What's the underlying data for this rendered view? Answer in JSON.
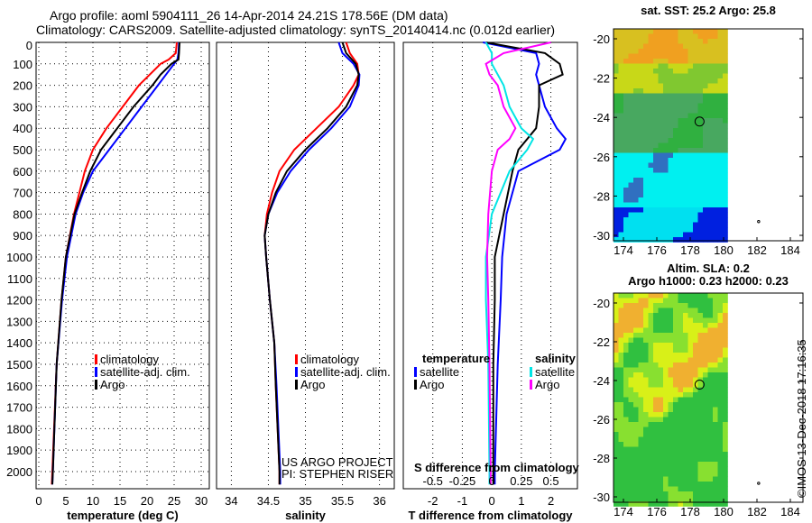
{
  "header": {
    "line1": "Argo profile: aoml 5904111_26 14-Apr-2014 24.21S 178.56E (DM data)",
    "line2": "Climatology: CARS2009. Satellite-adjusted climatology: synTS_20140414.nc (0.012d earlier)"
  },
  "colors": {
    "climatology": "#ff0000",
    "satellite": "#0000ff",
    "argo": "#000000",
    "sal_satellite": "#00e5e5",
    "sal_argo": "#ff00ff"
  },
  "chart_data": [
    {
      "type": "line",
      "name": "temperature",
      "xlabel": "temperature (deg C)",
      "ylabel": "depth",
      "xlim": [
        -0.5,
        31.5
      ],
      "ylim": [
        2080,
        0
      ],
      "xticks": [
        0,
        5,
        10,
        15,
        20,
        25,
        30
      ],
      "yticks": [
        0,
        100,
        200,
        300,
        400,
        500,
        600,
        700,
        800,
        900,
        1000,
        1100,
        1200,
        1300,
        1400,
        1500,
        1600,
        1700,
        1800,
        1900,
        2000
      ],
      "legend": [
        "climatology",
        "satellite-adj. clim.",
        "Argo"
      ],
      "depth": [
        0,
        50,
        80,
        100,
        150,
        200,
        300,
        400,
        500,
        600,
        700,
        800,
        1000,
        1200,
        1500,
        2000,
        2060
      ],
      "series": [
        {
          "name": "climatology",
          "values": [
            25.5,
            25.3,
            24,
            22.5,
            20.5,
            18.5,
            15.5,
            12.5,
            10,
            8.5,
            7.5,
            6.5,
            5,
            4.2,
            3.3,
            2.5,
            2.4
          ]
        },
        {
          "name": "satellite-adj. clim.",
          "values": [
            25.9,
            25.8,
            25.6,
            25,
            23.5,
            22,
            19,
            16,
            13,
            10,
            8.2,
            6.8,
            5.2,
            4.3,
            3.3,
            2.6,
            2.5
          ]
        },
        {
          "name": "Argo",
          "values": [
            26,
            25.9,
            25.8,
            24.5,
            22.5,
            21,
            17.5,
            14.5,
            11.5,
            9.5,
            8,
            6.6,
            5,
            4.2,
            3.3,
            2.6,
            2.5
          ]
        }
      ]
    },
    {
      "type": "line",
      "name": "salinity",
      "xlabel": "salinity",
      "xlim": [
        33.8,
        36.2
      ],
      "ylim": [
        2080,
        0
      ],
      "xticks": [
        "34",
        "34.5",
        "35",
        "35.5",
        "36"
      ],
      "xtick_values": [
        34,
        34.5,
        35,
        35.5,
        36
      ],
      "legend": [
        "climatology",
        "satellite-adj. clim.",
        "Argo"
      ],
      "annotation": [
        "US ARGO PROJECT",
        "PI: STEPHEN RISER"
      ],
      "depth": [
        0,
        50,
        100,
        150,
        200,
        300,
        400,
        500,
        600,
        700,
        800,
        900,
        1000,
        1200,
        1400,
        1600,
        2000,
        2060
      ],
      "series": [
        {
          "name": "climatology",
          "values": [
            35.55,
            35.6,
            35.7,
            35.72,
            35.65,
            35.45,
            35.15,
            34.85,
            34.65,
            34.55,
            34.48,
            34.45,
            34.47,
            34.52,
            34.58,
            34.6,
            34.65,
            34.65
          ]
        },
        {
          "name": "satellite-adj. clim.",
          "values": [
            35.45,
            35.5,
            35.65,
            35.73,
            35.72,
            35.6,
            35.35,
            35.05,
            34.8,
            34.62,
            34.5,
            34.45,
            34.47,
            34.52,
            34.58,
            34.61,
            34.66,
            34.66
          ]
        },
        {
          "name": "Argo",
          "values": [
            35.5,
            35.55,
            35.68,
            35.72,
            35.7,
            35.55,
            35.3,
            35.0,
            34.75,
            34.6,
            34.5,
            34.45,
            34.47,
            34.52,
            34.58,
            34.6,
            34.65,
            34.65
          ]
        }
      ]
    },
    {
      "type": "line",
      "name": "difference",
      "xlabel": "T difference from climatology",
      "x2label": "S difference from climatology",
      "xlim": [
        -3,
        2.9
      ],
      "ylim": [
        2080,
        0
      ],
      "xticks": [
        "-2",
        "-1",
        "0",
        "1",
        "2"
      ],
      "xtick_values": [
        -2,
        -1,
        0,
        1,
        2
      ],
      "x2ticks": [
        "-0.5",
        "-0.25",
        "0",
        "0.25",
        "0.5"
      ],
      "x2tick_values": [
        -0.5,
        -0.25,
        0,
        0.25,
        0.5
      ],
      "legend_t_title": "temperature",
      "legend_s_title": "salinity",
      "legend_items": [
        "satellite",
        "Argo",
        "satellite",
        "Argo"
      ],
      "depth": [
        0,
        50,
        100,
        150,
        200,
        300,
        400,
        450,
        500,
        600,
        800,
        1000,
        1200,
        1500,
        2000,
        2060
      ],
      "series": [
        {
          "name": "T satellite",
          "values": [
            -0.3,
            1.5,
            1.6,
            1.5,
            1.6,
            1.8,
            2.2,
            2.5,
            2.3,
            0.9,
            0.5,
            0.35,
            0.3,
            0.2,
            0.1,
            0.1
          ]
        },
        {
          "name": "T Argo",
          "values": [
            -0.2,
            1.8,
            2.3,
            2.4,
            1.6,
            1.6,
            1.5,
            1.2,
            0.9,
            0.7,
            0.4,
            0.1,
            0.1,
            0.05,
            0.05,
            0.05
          ]
        },
        {
          "name": "S satellite",
          "values": [
            -0.05,
            0.0,
            0.0,
            0.05,
            0.1,
            0.15,
            0.25,
            0.35,
            0.3,
            0.15,
            0.0,
            -0.05,
            -0.05,
            -0.03,
            -0.02,
            -0.02
          ]
        },
        {
          "name": "S Argo",
          "values": [
            0.5,
            0.1,
            -0.05,
            -0.02,
            0.05,
            0.1,
            0.2,
            0.15,
            0.05,
            0.0,
            -0.03,
            -0.04,
            -0.03,
            -0.02,
            -0.01,
            -0.01
          ]
        }
      ]
    }
  ],
  "maps": [
    {
      "title": "sat. SST: 25.2 Argo: 25.8",
      "xticks": [
        "174",
        "176",
        "178",
        "180",
        "182",
        "184"
      ],
      "yticks": [
        "-20",
        "-22",
        "-24",
        "-26",
        "-28",
        "-30"
      ]
    },
    {
      "title1": "Altim. SLA: 0.2",
      "title2": "Argo h1000: 0.23 h2000: 0.23",
      "xticks": [
        "174",
        "176",
        "178",
        "180",
        "182",
        "184"
      ],
      "yticks": [
        "-20",
        "-22",
        "-24",
        "-26",
        "-28",
        "-30"
      ]
    }
  ],
  "float_position": {
    "lon": 178.56,
    "lat": -24.21
  },
  "credit": "©IMOS 13-Dec-2018 17:16:35"
}
